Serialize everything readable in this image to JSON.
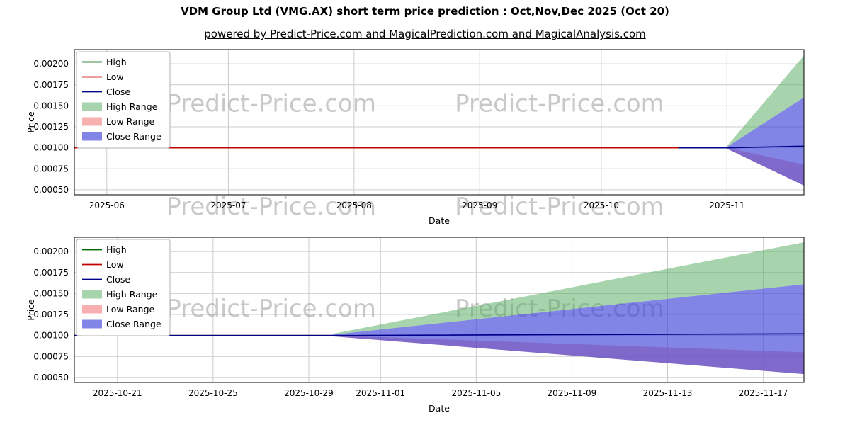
{
  "page": {
    "title": "VDM Group Ltd (VMG.AX) short term price prediction : Oct,Nov,Dec 2025 (Oct 20)",
    "subtitle": "powered by Predict-Price.com and MagicalPrediction.com and MagicalAnalysis.com",
    "watermark_text": "Predict-Price.com"
  },
  "colors": {
    "high_line": "#006400",
    "low_line": "#c00000",
    "close_line": "#00008b",
    "high_range_fill": "rgba(80,170,90,0.5)",
    "low_range_fill": "rgba(240,110,110,0.55)",
    "close_range_fill": "rgba(63,67,216,0.65)",
    "grid": "#cccccc",
    "axis": "#000000",
    "watermark": "rgba(120,120,120,0.4)"
  },
  "legend": [
    {
      "label": "High",
      "swatch": "line",
      "color": "high_line"
    },
    {
      "label": "Low",
      "swatch": "line",
      "color": "low_line"
    },
    {
      "label": "Close",
      "swatch": "line",
      "color": "close_line"
    },
    {
      "label": "High Range",
      "swatch": "patch",
      "color": "high_range_fill"
    },
    {
      "label": "Low Range",
      "swatch": "patch",
      "color": "low_range_fill"
    },
    {
      "label": "Close Range",
      "swatch": "patch",
      "color": "close_range_fill"
    }
  ],
  "chart_data": [
    {
      "type": "line",
      "title": "",
      "xlabel": "Date",
      "ylabel": "Price",
      "x_unit": "days since 2025-06-01",
      "xlim": [
        -8,
        172
      ],
      "ylim": [
        0.00044,
        0.00217
      ],
      "yticks": [
        0.0005,
        0.00075,
        0.001,
        0.00125,
        0.0015,
        0.00175,
        0.002
      ],
      "ytick_labels": [
        "0.00050",
        "0.00075",
        "0.00100",
        "0.00125",
        "0.00150",
        "0.00175",
        "0.00200"
      ],
      "xticks": [
        0,
        30,
        61,
        92,
        122,
        153
      ],
      "xtick_labels": [
        "2025-06",
        "2025-07",
        "2025-08",
        "2025-09",
        "2025-10",
        "2025-11"
      ],
      "bands": [
        {
          "name": "High Range",
          "color": "high_range_fill",
          "x": [
            153,
            172
          ],
          "upper": [
            0.00102,
            0.0021
          ],
          "lower": [
            0.00101,
            0.0016
          ]
        },
        {
          "name": "Low Range",
          "color": "low_range_fill",
          "x": [
            153,
            172
          ],
          "upper": [
            0.001,
            0.0008
          ],
          "lower": [
            0.00099,
            0.00055
          ]
        },
        {
          "name": "Close Range",
          "color": "close_range_fill",
          "x": [
            153,
            172
          ],
          "upper": [
            0.00101,
            0.0016
          ],
          "lower": [
            0.00099,
            0.00055
          ]
        }
      ],
      "lines": [
        {
          "name": "High",
          "color": "high_line",
          "x": [
            -8,
            141
          ],
          "y": [
            0.001,
            0.001
          ]
        },
        {
          "name": "Low",
          "color": "low_line",
          "x": [
            -8,
            141
          ],
          "y": [
            0.001,
            0.001
          ]
        },
        {
          "name": "Close",
          "color": "close_line",
          "x": [
            141,
            153,
            172
          ],
          "y": [
            0.001,
            0.001,
            0.00102
          ]
        }
      ],
      "watermarks": [
        {
          "fx": 0.27,
          "fy": 0.38
        },
        {
          "fx": 0.665,
          "fy": 0.38
        },
        {
          "fx": 0.27,
          "fy": 1.09
        },
        {
          "fx": 0.665,
          "fy": 1.09
        }
      ]
    },
    {
      "type": "line",
      "title": "",
      "xlabel": "Date",
      "ylabel": "Price",
      "x_unit": "days since 2025-10-21",
      "xlim": [
        -1.8,
        28.7
      ],
      "ylim": [
        0.00044,
        0.00217
      ],
      "yticks": [
        0.0005,
        0.00075,
        0.001,
        0.00125,
        0.0015,
        0.00175,
        0.002
      ],
      "ytick_labels": [
        "0.00050",
        "0.00075",
        "0.00100",
        "0.00125",
        "0.00150",
        "0.00175",
        "0.00200"
      ],
      "xticks": [
        0,
        4,
        8,
        11,
        15,
        19,
        23,
        27
      ],
      "xtick_labels": [
        "2025-10-21",
        "2025-10-25",
        "2025-10-29",
        "2025-11-01",
        "2025-11-05",
        "2025-11-09",
        "2025-11-13",
        "2025-11-17"
      ],
      "bands": [
        {
          "name": "High Range",
          "color": "high_range_fill",
          "x": [
            9,
            28.7
          ],
          "upper": [
            0.00102,
            0.00211
          ],
          "lower": [
            0.00101,
            0.00161
          ]
        },
        {
          "name": "Low Range",
          "color": "low_range_fill",
          "x": [
            9,
            28.7
          ],
          "upper": [
            0.001,
            0.0008
          ],
          "lower": [
            0.00099,
            0.00054
          ]
        },
        {
          "name": "Close Range",
          "color": "close_range_fill",
          "x": [
            9,
            28.7
          ],
          "upper": [
            0.00101,
            0.00161
          ],
          "lower": [
            0.00099,
            0.00054
          ]
        }
      ],
      "lines": [
        {
          "name": "High",
          "color": "high_line",
          "x": [
            -1.8,
            9
          ],
          "y": [
            0.001,
            0.001
          ]
        },
        {
          "name": "Low",
          "color": "low_line",
          "x": [
            -1.8,
            9
          ],
          "y": [
            0.001,
            0.001
          ]
        },
        {
          "name": "Close",
          "color": "close_line",
          "x": [
            -1.8,
            9,
            28.7
          ],
          "y": [
            0.001,
            0.001,
            0.00102
          ]
        }
      ],
      "watermarks": [
        {
          "fx": 0.27,
          "fy": 0.5
        },
        {
          "fx": 0.665,
          "fy": 0.5
        }
      ]
    }
  ]
}
